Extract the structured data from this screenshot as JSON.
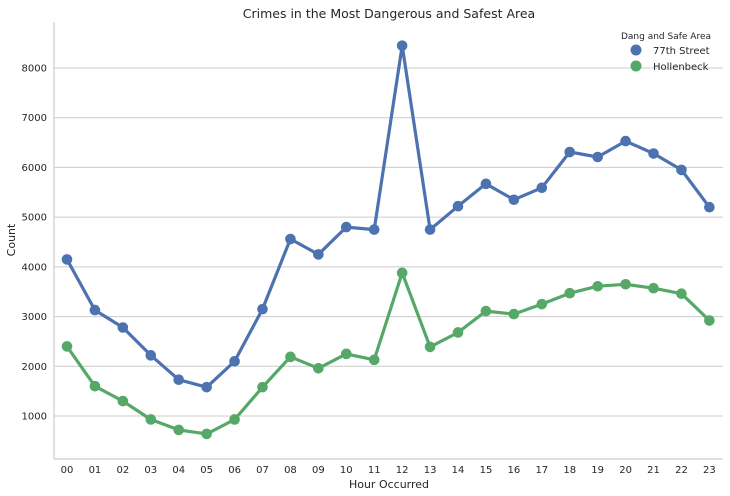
{
  "chart_data": {
    "type": "line",
    "title": "Crimes in the Most Dangerous and Safest Area",
    "xlabel": "Hour Occurred",
    "ylabel": "Count",
    "categories": [
      "00",
      "01",
      "02",
      "03",
      "04",
      "05",
      "06",
      "07",
      "08",
      "09",
      "10",
      "11",
      "12",
      "13",
      "14",
      "15",
      "16",
      "17",
      "18",
      "19",
      "20",
      "21",
      "22",
      "23"
    ],
    "yticks": [
      1000,
      2000,
      3000,
      4000,
      5000,
      6000,
      7000,
      8000
    ],
    "ylim": [
      100,
      8900
    ],
    "grid": "horizontal",
    "legend": {
      "title": "Dang and Safe Area",
      "placement": "top-right"
    },
    "series": [
      {
        "name": "77th Street",
        "color": "#4c72b0",
        "values": [
          4150,
          3130,
          2780,
          2220,
          1730,
          1580,
          2100,
          3150,
          4560,
          4250,
          4800,
          4750,
          8450,
          4750,
          5220,
          5670,
          5350,
          5590,
          6310,
          6210,
          6530,
          6280,
          5950,
          5200
        ]
      },
      {
        "name": "Hollenbeck",
        "color": "#55a868",
        "values": [
          2400,
          1600,
          1300,
          930,
          720,
          640,
          930,
          1580,
          2190,
          1960,
          2250,
          2130,
          3880,
          2390,
          2680,
          3110,
          3050,
          3250,
          3470,
          3610,
          3650,
          3570,
          3460,
          2920
        ]
      }
    ]
  }
}
